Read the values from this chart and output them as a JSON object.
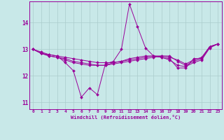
{
  "xlabel": "Windchill (Refroidissement éolien,°C)",
  "xlim": [
    -0.5,
    23.5
  ],
  "ylim": [
    10.75,
    14.8
  ],
  "xticks": [
    0,
    1,
    2,
    3,
    4,
    5,
    6,
    7,
    8,
    9,
    10,
    11,
    12,
    13,
    14,
    15,
    16,
    17,
    18,
    19,
    20,
    21,
    22,
    23
  ],
  "yticks": [
    11,
    12,
    13,
    14
  ],
  "background_color": "#c8e8e8",
  "grid_color": "#aacccc",
  "line_color": "#990099",
  "series": [
    [
      13.0,
      12.85,
      12.75,
      12.7,
      12.65,
      12.55,
      12.5,
      12.45,
      12.4,
      12.4,
      12.45,
      12.5,
      12.55,
      12.6,
      12.65,
      12.7,
      12.75,
      12.75,
      12.55,
      12.4,
      12.55,
      12.65,
      13.1,
      13.2
    ],
    [
      13.0,
      12.85,
      12.75,
      12.7,
      12.6,
      12.5,
      12.45,
      12.4,
      12.4,
      12.4,
      12.5,
      12.55,
      12.65,
      12.7,
      12.75,
      12.75,
      12.7,
      12.6,
      12.4,
      12.35,
      12.5,
      12.6,
      13.05,
      13.2
    ],
    [
      13.0,
      12.85,
      12.8,
      12.75,
      12.7,
      12.65,
      12.6,
      12.55,
      12.5,
      12.5,
      12.5,
      12.55,
      12.6,
      12.65,
      12.7,
      12.75,
      12.75,
      12.7,
      12.6,
      12.45,
      12.6,
      12.7,
      13.1,
      13.2
    ],
    [
      13.0,
      12.9,
      12.8,
      12.75,
      12.5,
      12.2,
      11.2,
      11.55,
      11.3,
      12.45,
      12.55,
      13.0,
      14.7,
      13.85,
      13.05,
      12.75,
      12.7,
      12.65,
      12.3,
      12.3,
      12.65,
      12.65,
      13.1,
      13.2
    ]
  ],
  "figsize": [
    3.2,
    2.0
  ],
  "dpi": 100
}
